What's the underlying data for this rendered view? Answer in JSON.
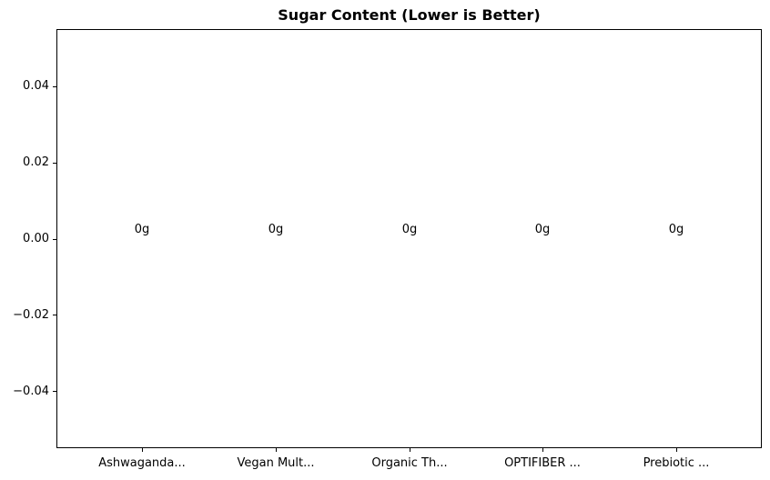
{
  "chart_data": {
    "type": "bar",
    "title": "Sugar Content (Lower is Better)",
    "categories": [
      "Ashwaganda...",
      "Vegan Mult...",
      "Organic Th...",
      "OPTIFIBER ...",
      "Prebiotic ..."
    ],
    "values": [
      0,
      0,
      0,
      0,
      0
    ],
    "bar_labels": [
      "0g",
      "0g",
      "0g",
      "0g",
      "0g"
    ],
    "xlabel": "",
    "ylabel": "",
    "ylim": [
      -0.055,
      0.055
    ],
    "ytick_values": [
      0.04,
      0.02,
      0.0,
      -0.02,
      -0.04
    ],
    "ytick_labels": [
      "0.04",
      "0.02",
      "0.00",
      "−0.02",
      "−0.04"
    ],
    "grid": false,
    "legend": false,
    "colors": {
      "text": "#000000",
      "spine": "#000000",
      "background": "#ffffff"
    }
  }
}
